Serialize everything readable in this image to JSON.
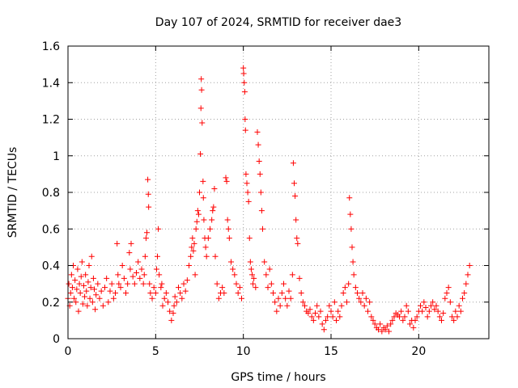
{
  "chart_data": {
    "type": "scatter",
    "title": "Day 107 of 2024, SRMTID for receiver dae3",
    "xlabel": "GPS time / hours",
    "ylabel": "SRMTID / TECUs",
    "xlim": [
      0,
      24
    ],
    "ylim": [
      0,
      1.6
    ],
    "xticks": [
      0,
      5,
      10,
      15,
      20
    ],
    "yticks": [
      0,
      0.2,
      0.4,
      0.6,
      0.8,
      1,
      1.2,
      1.4,
      1.6
    ],
    "xtick_labels": [
      "0",
      "5",
      "10",
      "15",
      "20"
    ],
    "ytick_labels": [
      "0",
      "0.2",
      "0.4",
      "0.6",
      "0.8",
      "1",
      "1.2",
      "1.4",
      "1.6"
    ],
    "grid": true,
    "marker": "+",
    "color": "#ff0000",
    "series": [
      {
        "name": "SRMTID",
        "points": [
          [
            0.0,
            0.22
          ],
          [
            0.05,
            0.3
          ],
          [
            0.1,
            0.18
          ],
          [
            0.15,
            0.25
          ],
          [
            0.2,
            0.35
          ],
          [
            0.25,
            0.28
          ],
          [
            0.3,
            0.4
          ],
          [
            0.35,
            0.22
          ],
          [
            0.4,
            0.32
          ],
          [
            0.45,
            0.2
          ],
          [
            0.5,
            0.27
          ],
          [
            0.55,
            0.38
          ],
          [
            0.6,
            0.15
          ],
          [
            0.65,
            0.3
          ],
          [
            0.7,
            0.25
          ],
          [
            0.75,
            0.34
          ],
          [
            0.8,
            0.42
          ],
          [
            0.85,
            0.19
          ],
          [
            0.9,
            0.29
          ],
          [
            0.95,
            0.23
          ],
          [
            1.0,
            0.35
          ],
          [
            1.05,
            0.26
          ],
          [
            1.1,
            0.18
          ],
          [
            1.15,
            0.31
          ],
          [
            1.2,
            0.4
          ],
          [
            1.25,
            0.22
          ],
          [
            1.3,
            0.28
          ],
          [
            1.35,
            0.45
          ],
          [
            1.4,
            0.2
          ],
          [
            1.45,
            0.33
          ],
          [
            1.5,
            0.27
          ],
          [
            1.55,
            0.16
          ],
          [
            1.6,
            0.24
          ],
          [
            1.7,
            0.3
          ],
          [
            1.8,
            0.22
          ],
          [
            1.9,
            0.26
          ],
          [
            2.0,
            0.18
          ],
          [
            2.1,
            0.28
          ],
          [
            2.2,
            0.33
          ],
          [
            2.3,
            0.2
          ],
          [
            2.4,
            0.26
          ],
          [
            2.5,
            0.3
          ],
          [
            2.6,
            0.22
          ],
          [
            2.7,
            0.25
          ],
          [
            2.8,
            0.52
          ],
          [
            2.85,
            0.35
          ],
          [
            2.9,
            0.3
          ],
          [
            3.0,
            0.28
          ],
          [
            3.1,
            0.4
          ],
          [
            3.2,
            0.33
          ],
          [
            3.3,
            0.25
          ],
          [
            3.4,
            0.3
          ],
          [
            3.5,
            0.47
          ],
          [
            3.55,
            0.38
          ],
          [
            3.6,
            0.52
          ],
          [
            3.7,
            0.34
          ],
          [
            3.8,
            0.3
          ],
          [
            3.9,
            0.36
          ],
          [
            4.0,
            0.42
          ],
          [
            4.1,
            0.33
          ],
          [
            4.2,
            0.38
          ],
          [
            4.3,
            0.3
          ],
          [
            4.35,
            0.35
          ],
          [
            4.4,
            0.45
          ],
          [
            4.45,
            0.55
          ],
          [
            4.5,
            0.58
          ],
          [
            4.55,
            0.87
          ],
          [
            4.58,
            0.79
          ],
          [
            4.6,
            0.72
          ],
          [
            4.65,
            0.3
          ],
          [
            4.7,
            0.25
          ],
          [
            4.8,
            0.22
          ],
          [
            4.9,
            0.28
          ],
          [
            5.0,
            0.25
          ],
          [
            5.05,
            0.38
          ],
          [
            5.1,
            0.45
          ],
          [
            5.15,
            0.6
          ],
          [
            5.2,
            0.35
          ],
          [
            5.3,
            0.28
          ],
          [
            5.35,
            0.3
          ],
          [
            5.4,
            0.18
          ],
          [
            5.5,
            0.22
          ],
          [
            5.6,
            0.25
          ],
          [
            5.7,
            0.2
          ],
          [
            5.8,
            0.15
          ],
          [
            5.9,
            0.1
          ],
          [
            6.0,
            0.14
          ],
          [
            6.05,
            0.18
          ],
          [
            6.1,
            0.23
          ],
          [
            6.2,
            0.2
          ],
          [
            6.3,
            0.28
          ],
          [
            6.4,
            0.25
          ],
          [
            6.5,
            0.22
          ],
          [
            6.6,
            0.3
          ],
          [
            6.7,
            0.26
          ],
          [
            6.8,
            0.32
          ],
          [
            6.9,
            0.4
          ],
          [
            7.0,
            0.45
          ],
          [
            7.05,
            0.5
          ],
          [
            7.1,
            0.55
          ],
          [
            7.15,
            0.48
          ],
          [
            7.2,
            0.52
          ],
          [
            7.25,
            0.35
          ],
          [
            7.3,
            0.6
          ],
          [
            7.35,
            0.64
          ],
          [
            7.4,
            0.7
          ],
          [
            7.45,
            0.68
          ],
          [
            7.5,
            0.8
          ],
          [
            7.55,
            1.01
          ],
          [
            7.58,
            1.26
          ],
          [
            7.6,
            1.42
          ],
          [
            7.62,
            1.36
          ],
          [
            7.65,
            1.18
          ],
          [
            7.7,
            0.86
          ],
          [
            7.72,
            0.77
          ],
          [
            7.75,
            0.65
          ],
          [
            7.8,
            0.55
          ],
          [
            7.85,
            0.5
          ],
          [
            7.9,
            0.45
          ],
          [
            8.0,
            0.55
          ],
          [
            8.1,
            0.6
          ],
          [
            8.2,
            0.65
          ],
          [
            8.25,
            0.7
          ],
          [
            8.3,
            0.72
          ],
          [
            8.35,
            0.82
          ],
          [
            8.4,
            0.45
          ],
          [
            8.5,
            0.3
          ],
          [
            8.6,
            0.22
          ],
          [
            8.7,
            0.25
          ],
          [
            8.8,
            0.28
          ],
          [
            8.9,
            0.25
          ],
          [
            9.0,
            0.88
          ],
          [
            9.05,
            0.86
          ],
          [
            9.1,
            0.65
          ],
          [
            9.15,
            0.6
          ],
          [
            9.2,
            0.55
          ],
          [
            9.3,
            0.42
          ],
          [
            9.4,
            0.38
          ],
          [
            9.5,
            0.35
          ],
          [
            9.6,
            0.3
          ],
          [
            9.7,
            0.25
          ],
          [
            9.8,
            0.28
          ],
          [
            9.9,
            0.22
          ],
          [
            10.0,
            1.48
          ],
          [
            10.02,
            1.45
          ],
          [
            10.05,
            1.4
          ],
          [
            10.08,
            1.35
          ],
          [
            10.1,
            1.2
          ],
          [
            10.12,
            1.14
          ],
          [
            10.15,
            0.9
          ],
          [
            10.2,
            0.85
          ],
          [
            10.25,
            0.8
          ],
          [
            10.3,
            0.75
          ],
          [
            10.35,
            0.55
          ],
          [
            10.4,
            0.42
          ],
          [
            10.45,
            0.38
          ],
          [
            10.5,
            0.35
          ],
          [
            10.55,
            0.3
          ],
          [
            10.6,
            0.33
          ],
          [
            10.7,
            0.28
          ],
          [
            10.8,
            1.13
          ],
          [
            10.85,
            1.06
          ],
          [
            10.9,
            0.97
          ],
          [
            10.95,
            0.9
          ],
          [
            11.0,
            0.8
          ],
          [
            11.05,
            0.7
          ],
          [
            11.1,
            0.6
          ],
          [
            11.2,
            0.42
          ],
          [
            11.3,
            0.35
          ],
          [
            11.4,
            0.28
          ],
          [
            11.5,
            0.38
          ],
          [
            11.6,
            0.3
          ],
          [
            11.7,
            0.25
          ],
          [
            11.8,
            0.2
          ],
          [
            11.9,
            0.15
          ],
          [
            12.0,
            0.22
          ],
          [
            12.1,
            0.18
          ],
          [
            12.2,
            0.25
          ],
          [
            12.3,
            0.3
          ],
          [
            12.4,
            0.22
          ],
          [
            12.5,
            0.18
          ],
          [
            12.6,
            0.26
          ],
          [
            12.7,
            0.22
          ],
          [
            12.8,
            0.35
          ],
          [
            12.85,
            0.96
          ],
          [
            12.9,
            0.85
          ],
          [
            12.95,
            0.78
          ],
          [
            13.0,
            0.65
          ],
          [
            13.05,
            0.55
          ],
          [
            13.1,
            0.52
          ],
          [
            13.2,
            0.33
          ],
          [
            13.3,
            0.25
          ],
          [
            13.4,
            0.2
          ],
          [
            13.5,
            0.18
          ],
          [
            13.6,
            0.15
          ],
          [
            13.7,
            0.14
          ],
          [
            13.8,
            0.16
          ],
          [
            13.9,
            0.12
          ],
          [
            14.0,
            0.1
          ],
          [
            14.1,
            0.14
          ],
          [
            14.2,
            0.18
          ],
          [
            14.3,
            0.12
          ],
          [
            14.4,
            0.15
          ],
          [
            14.5,
            0.08
          ],
          [
            14.6,
            0.05
          ],
          [
            14.7,
            0.1
          ],
          [
            14.8,
            0.12
          ],
          [
            14.9,
            0.18
          ],
          [
            15.0,
            0.15
          ],
          [
            15.1,
            0.12
          ],
          [
            15.2,
            0.2
          ],
          [
            15.3,
            0.1
          ],
          [
            15.4,
            0.15
          ],
          [
            15.5,
            0.12
          ],
          [
            15.6,
            0.18
          ],
          [
            15.7,
            0.25
          ],
          [
            15.8,
            0.28
          ],
          [
            15.9,
            0.2
          ],
          [
            16.0,
            0.3
          ],
          [
            16.05,
            0.77
          ],
          [
            16.1,
            0.68
          ],
          [
            16.15,
            0.6
          ],
          [
            16.2,
            0.5
          ],
          [
            16.25,
            0.42
          ],
          [
            16.3,
            0.35
          ],
          [
            16.4,
            0.28
          ],
          [
            16.5,
            0.25
          ],
          [
            16.6,
            0.22
          ],
          [
            16.7,
            0.2
          ],
          [
            16.8,
            0.25
          ],
          [
            16.9,
            0.18
          ],
          [
            17.0,
            0.22
          ],
          [
            17.1,
            0.15
          ],
          [
            17.2,
            0.2
          ],
          [
            17.3,
            0.12
          ],
          [
            17.4,
            0.1
          ],
          [
            17.5,
            0.08
          ],
          [
            17.6,
            0.06
          ],
          [
            17.7,
            0.05
          ],
          [
            17.8,
            0.08
          ],
          [
            17.9,
            0.04
          ],
          [
            18.0,
            0.06
          ],
          [
            18.1,
            0.05
          ],
          [
            18.2,
            0.07
          ],
          [
            18.3,
            0.04
          ],
          [
            18.4,
            0.08
          ],
          [
            18.5,
            0.1
          ],
          [
            18.6,
            0.12
          ],
          [
            18.7,
            0.14
          ],
          [
            18.8,
            0.13
          ],
          [
            18.9,
            0.12
          ],
          [
            19.0,
            0.15
          ],
          [
            19.1,
            0.1
          ],
          [
            19.2,
            0.12
          ],
          [
            19.3,
            0.18
          ],
          [
            19.4,
            0.15
          ],
          [
            19.5,
            0.08
          ],
          [
            19.6,
            0.1
          ],
          [
            19.7,
            0.06
          ],
          [
            19.8,
            0.1
          ],
          [
            19.9,
            0.12
          ],
          [
            20.0,
            0.15
          ],
          [
            20.1,
            0.18
          ],
          [
            20.2,
            0.15
          ],
          [
            20.3,
            0.2
          ],
          [
            20.4,
            0.17
          ],
          [
            20.5,
            0.12
          ],
          [
            20.6,
            0.15
          ],
          [
            20.7,
            0.18
          ],
          [
            20.8,
            0.2
          ],
          [
            20.9,
            0.16
          ],
          [
            21.0,
            0.18
          ],
          [
            21.1,
            0.15
          ],
          [
            21.2,
            0.12
          ],
          [
            21.3,
            0.1
          ],
          [
            21.4,
            0.14
          ],
          [
            21.5,
            0.22
          ],
          [
            21.6,
            0.25
          ],
          [
            21.7,
            0.28
          ],
          [
            21.8,
            0.2
          ],
          [
            21.9,
            0.12
          ],
          [
            22.0,
            0.1
          ],
          [
            22.1,
            0.15
          ],
          [
            22.2,
            0.12
          ],
          [
            22.3,
            0.18
          ],
          [
            22.4,
            0.15
          ],
          [
            22.5,
            0.22
          ],
          [
            22.6,
            0.25
          ],
          [
            22.7,
            0.3
          ],
          [
            22.8,
            0.35
          ],
          [
            22.9,
            0.4
          ]
        ]
      }
    ]
  }
}
